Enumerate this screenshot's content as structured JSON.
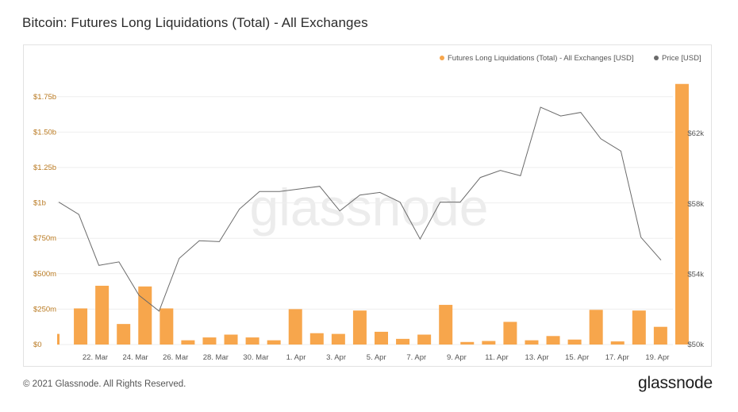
{
  "page": {
    "title": "Bitcoin: Futures Long Liquidations (Total) - All Exchanges",
    "copyright": "© 2021 Glassnode. All Rights Reserved.",
    "brand": "glassnode",
    "watermark": "glassnode"
  },
  "colors": {
    "bar": "#f7a64c",
    "line": "#6a6a6a",
    "legend_bar_dot": "#f7a64c",
    "legend_line_dot": "#6a6a6a",
    "left_axis_text": "#b8781f",
    "grid": "#eeeeee"
  },
  "chart_data": {
    "type": "bar",
    "title": "Bitcoin: Futures Long Liquidations (Total) - All Exchanges",
    "legend_position": "top-right",
    "grid": true,
    "x_tick_labels": [
      "22. Mar",
      "24. Mar",
      "26. Mar",
      "28. Mar",
      "30. Mar",
      "1. Apr",
      "3. Apr",
      "5. Apr",
      "7. Apr",
      "9. Apr",
      "11. Apr",
      "13. Apr",
      "15. Apr",
      "17. Apr",
      "19. Apr"
    ],
    "y_left": {
      "ticks": [
        "$0",
        "$250m",
        "$500m",
        "$750m",
        "$1b",
        "$1.25b",
        "$1.50b",
        "$1.75b"
      ],
      "tick_values": [
        0,
        250,
        500,
        750,
        1000,
        1250,
        1500,
        1750
      ],
      "unit": "million USD",
      "range": [
        0,
        1850
      ]
    },
    "y_right": {
      "ticks": [
        "$50k",
        "$54k",
        "$58k",
        "$62k"
      ],
      "tick_values": [
        50000,
        54000,
        58000,
        62000
      ],
      "range": [
        50000,
        65300
      ]
    },
    "series": [
      {
        "name": "Futures Long Liquidations (Total) - All Exchanges [USD]",
        "kind": "bar",
        "values": [
          75,
          255,
          415,
          145,
          410,
          255,
          30,
          50,
          70,
          50,
          30,
          250,
          80,
          75,
          240,
          90,
          40,
          70,
          280,
          18,
          25,
          160,
          30,
          60,
          35,
          245,
          22,
          240,
          125,
          1840
        ]
      },
      {
        "name": "Price [USD]",
        "kind": "line",
        "values": [
          58100,
          57400,
          54500,
          54700,
          52800,
          51900,
          54900,
          55900,
          55850,
          57700,
          58700,
          58700,
          58850,
          59000,
          57600,
          58500,
          58650,
          58100,
          56000,
          58100,
          58100,
          59500,
          59900,
          59600,
          63500,
          63000,
          63200,
          61700,
          61000,
          56100,
          54800
        ]
      }
    ]
  }
}
